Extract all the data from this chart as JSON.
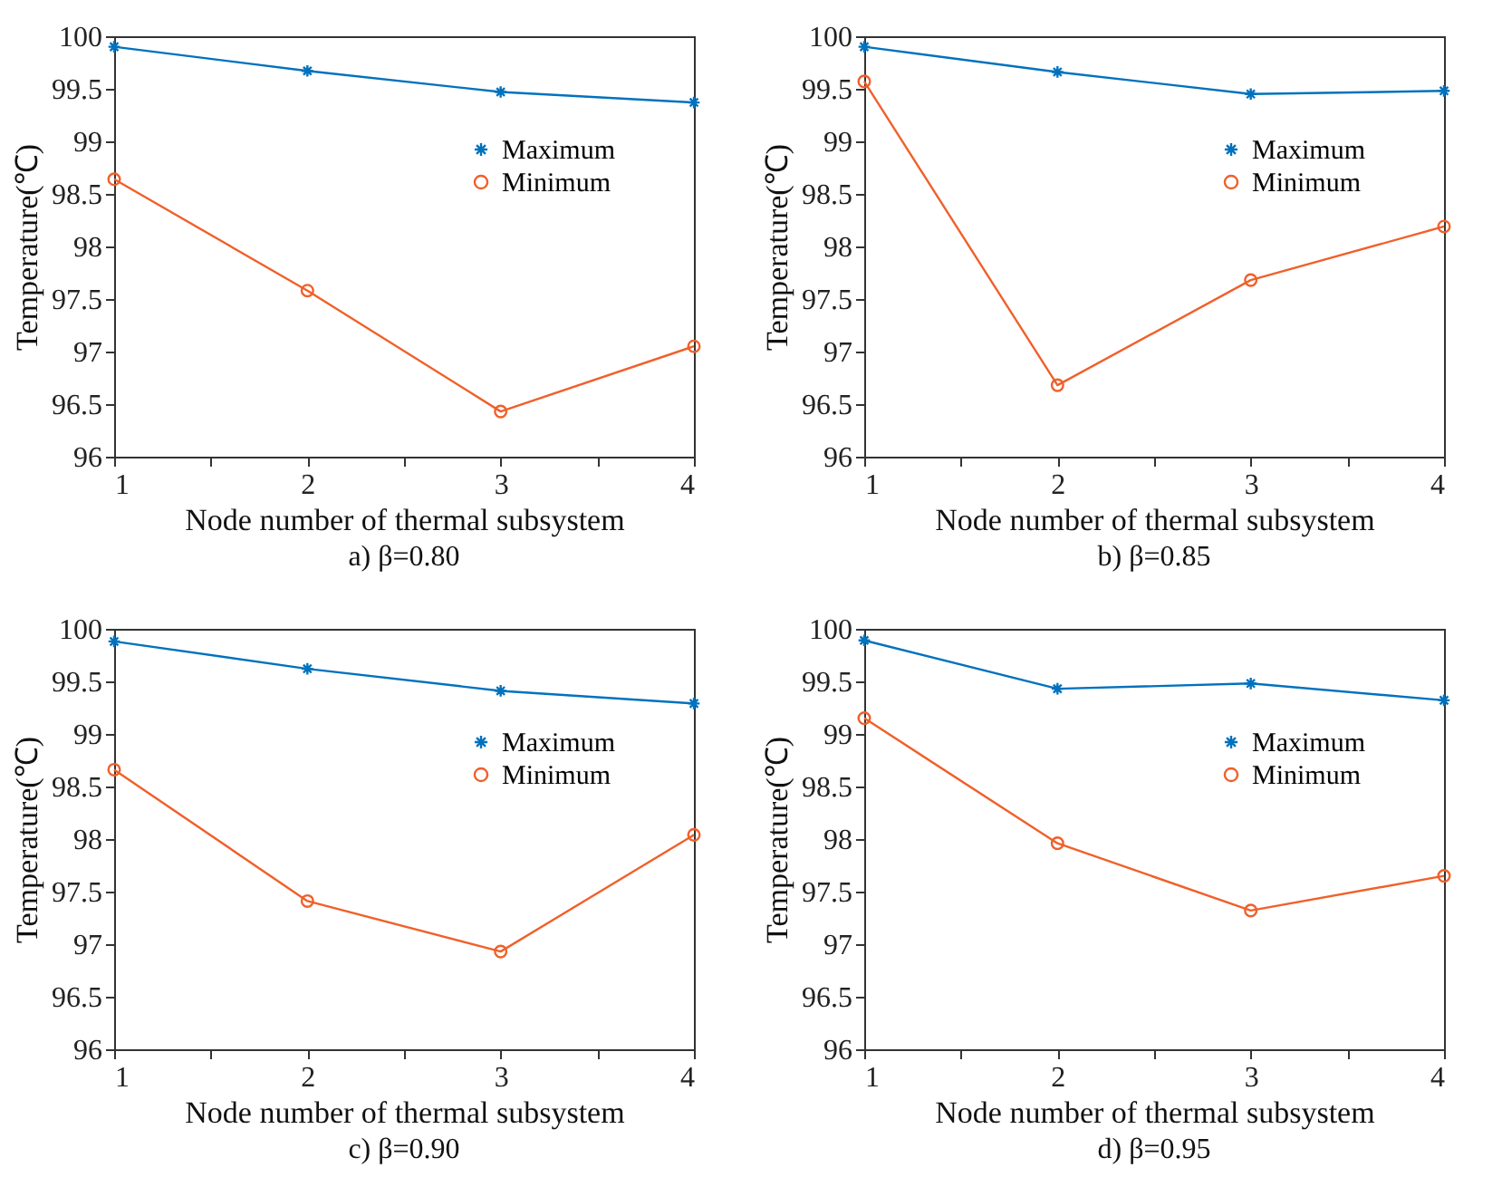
{
  "chart_data": [
    {
      "type": "line",
      "title": "a)  β=0.80",
      "xlabel": "Node number of thermal subsystem",
      "ylabel": "Temperature(℃)",
      "x": [
        1,
        2,
        3,
        4
      ],
      "xlim": [
        1,
        4
      ],
      "xticks": [
        1,
        {
          "value": 1.5,
          "label": null
        },
        2,
        {
          "value": 2.5,
          "label": null
        },
        3,
        {
          "value": 3.5,
          "label": null
        },
        4
      ],
      "ylim": [
        96,
        100
      ],
      "yticks": [
        96,
        96.5,
        97,
        97.5,
        98,
        98.5,
        99,
        99.5,
        100
      ],
      "legend": "top right",
      "series": [
        {
          "name": "Maximum",
          "color": "#0072bd",
          "marker": "cross",
          "values": [
            99.9,
            99.67,
            99.47,
            99.37
          ]
        },
        {
          "name": "Minimum",
          "color": "#f0602a",
          "marker": "circle",
          "values": [
            98.64,
            97.58,
            96.43,
            97.05
          ]
        }
      ]
    },
    {
      "type": "line",
      "title": "b)  β=0.85",
      "xlabel": "Node number of thermal subsystem",
      "ylabel": "Temperature(℃)",
      "x": [
        1,
        2,
        3,
        4
      ],
      "xlim": [
        1,
        4
      ],
      "xticks": [
        1,
        {
          "value": 1.5,
          "label": null
        },
        2,
        {
          "value": 2.5,
          "label": null
        },
        3,
        {
          "value": 3.5,
          "label": null
        },
        4
      ],
      "ylim": [
        96,
        100
      ],
      "yticks": [
        96,
        96.5,
        97,
        97.5,
        98,
        98.5,
        99,
        99.5,
        100
      ],
      "legend": "top right",
      "series": [
        {
          "name": "Maximum",
          "color": "#0072bd",
          "marker": "cross",
          "values": [
            99.9,
            99.66,
            99.45,
            99.48
          ]
        },
        {
          "name": "Minimum",
          "color": "#f0602a",
          "marker": "circle",
          "values": [
            99.57,
            96.68,
            97.68,
            98.19
          ]
        }
      ]
    },
    {
      "type": "line",
      "title": "c)  β=0.90",
      "xlabel": "Node number of thermal subsystem",
      "ylabel": "Temperature(℃)",
      "x": [
        1,
        2,
        3,
        4
      ],
      "xlim": [
        1,
        4
      ],
      "xticks": [
        1,
        {
          "value": 1.5,
          "label": null
        },
        2,
        {
          "value": 2.5,
          "label": null
        },
        3,
        {
          "value": 3.5,
          "label": null
        },
        4
      ],
      "ylim": [
        96,
        100
      ],
      "yticks": [
        96,
        96.5,
        97,
        97.5,
        98,
        98.5,
        99,
        99.5,
        100
      ],
      "legend": "top right",
      "series": [
        {
          "name": "Maximum",
          "color": "#0072bd",
          "marker": "cross",
          "values": [
            99.88,
            99.62,
            99.41,
            99.29
          ]
        },
        {
          "name": "Minimum",
          "color": "#f0602a",
          "marker": "circle",
          "values": [
            98.66,
            97.41,
            96.93,
            98.04
          ]
        }
      ]
    },
    {
      "type": "line",
      "title": "d)  β=0.95",
      "xlabel": "Node number of thermal subsystem",
      "ylabel": "Temperature(℃)",
      "x": [
        1,
        2,
        3,
        4
      ],
      "xlim": [
        1,
        4
      ],
      "xticks": [
        1,
        {
          "value": 1.5,
          "label": null
        },
        2,
        {
          "value": 2.5,
          "label": null
        },
        3,
        {
          "value": 3.5,
          "label": null
        },
        4
      ],
      "ylim": [
        96,
        100
      ],
      "yticks": [
        96,
        96.5,
        97,
        97.5,
        98,
        98.5,
        99,
        99.5,
        100
      ],
      "legend": "top right",
      "series": [
        {
          "name": "Maximum",
          "color": "#0072bd",
          "marker": "cross",
          "values": [
            99.89,
            99.43,
            99.48,
            99.32
          ]
        },
        {
          "name": "Minimum",
          "color": "#f0602a",
          "marker": "circle",
          "values": [
            99.15,
            97.96,
            97.32,
            97.65
          ]
        }
      ]
    }
  ]
}
